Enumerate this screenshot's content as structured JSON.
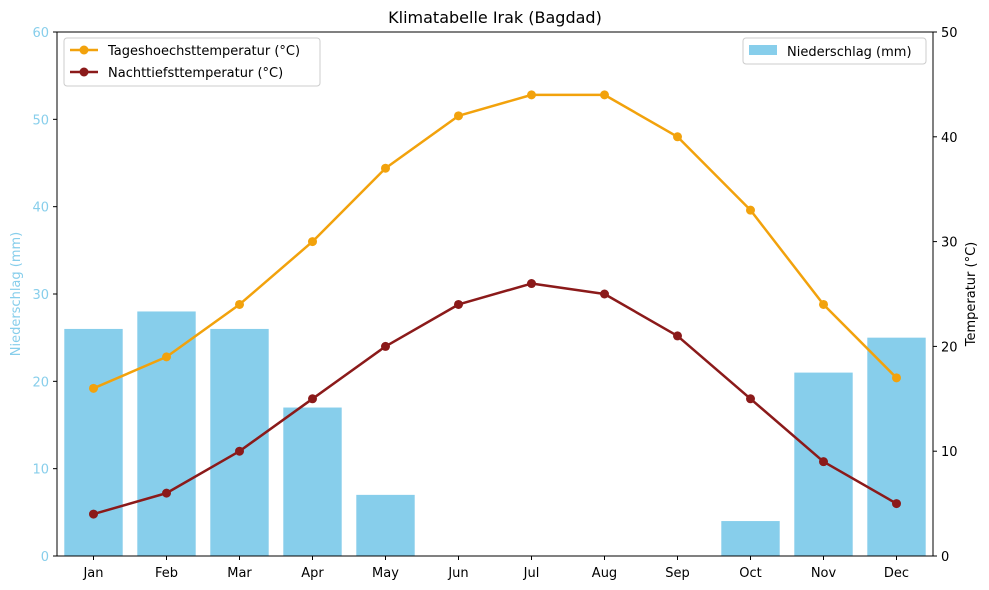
{
  "chart_data": {
    "type": "bar+line",
    "title": "Klimatabelle Irak (Bagdad)",
    "categories": [
      "Jan",
      "Feb",
      "Mar",
      "Apr",
      "May",
      "Jun",
      "Jul",
      "Aug",
      "Sep",
      "Oct",
      "Nov",
      "Dec"
    ],
    "bars": {
      "name": "Niederschlag (mm)",
      "values": [
        26,
        28,
        26,
        17,
        7,
        0,
        0,
        0,
        0,
        4,
        21,
        25
      ],
      "color": "#87ceeb",
      "axis": "left"
    },
    "series": [
      {
        "name": "Tageshoechsttemperatur (°C)",
        "values": [
          16,
          19,
          24,
          30,
          37,
          42,
          44,
          44,
          40,
          33,
          24,
          17
        ],
        "color": "#f2a20c",
        "axis": "right"
      },
      {
        "name": "Nachttiefsttemperatur (°C)",
        "values": [
          4,
          6,
          10,
          15,
          20,
          24,
          26,
          25,
          21,
          15,
          9,
          5
        ],
        "color": "#8b1a1a",
        "axis": "right"
      }
    ],
    "left_axis": {
      "label": "Niederschlag (mm)",
      "ylim": [
        0,
        60
      ],
      "ticks": [
        0,
        10,
        20,
        30,
        40,
        50,
        60
      ],
      "color": "#87ceeb"
    },
    "right_axis": {
      "label": "Temperatur (°C)",
      "ylim": [
        0,
        50
      ],
      "ticks": [
        0,
        10,
        20,
        30,
        40,
        50
      ],
      "color": "#000000"
    },
    "grid": false,
    "legend_lines_position": "top-left",
    "legend_bars_position": "top-right"
  }
}
